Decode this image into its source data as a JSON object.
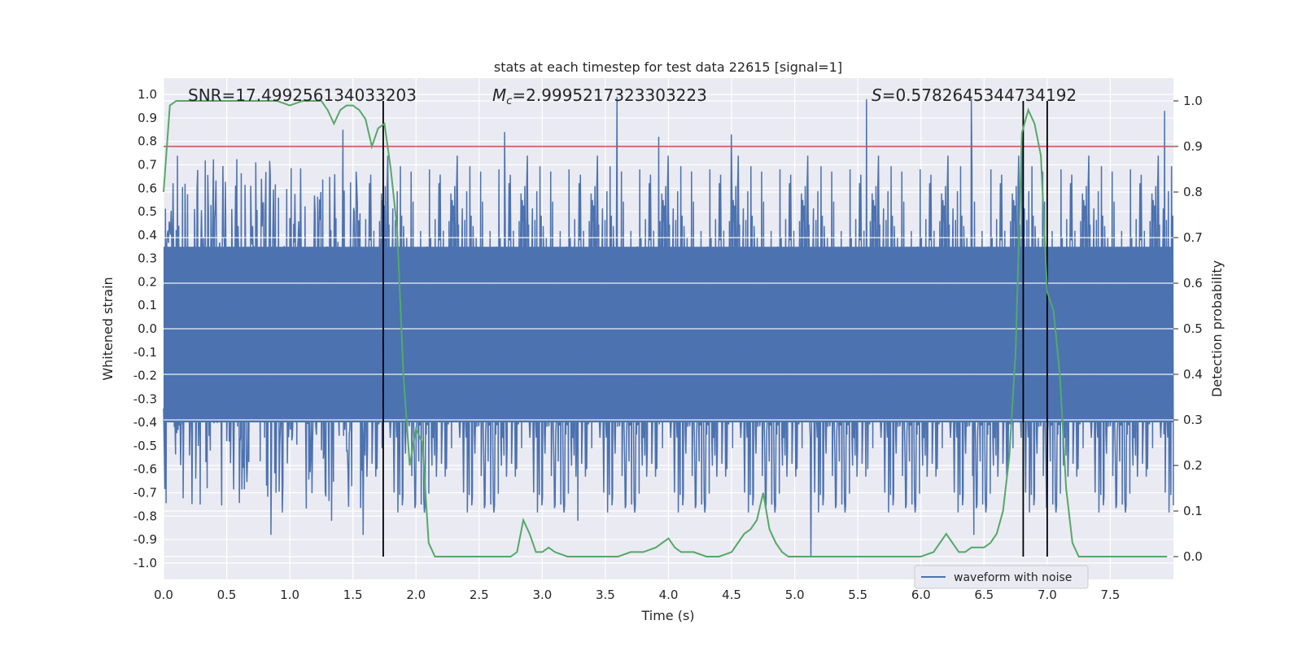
{
  "chart_data": {
    "type": "line",
    "title": "stats at each timestep for test data 22615 [signal=1]",
    "xlabel": "Time (s)",
    "ylabel_left": "Whitened strain",
    "ylabel_right": "Detection probability",
    "xlim": [
      0.0,
      8.0
    ],
    "ylim_left": [
      -1.07,
      1.07
    ],
    "ylim_right": [
      -0.05,
      1.05
    ],
    "grid": true,
    "x_ticks": [
      "0.0",
      "0.5",
      "1.0",
      "1.5",
      "2.0",
      "2.5",
      "3.0",
      "3.5",
      "4.0",
      "4.5",
      "5.0",
      "5.5",
      "6.0",
      "6.5",
      "7.0",
      "7.5"
    ],
    "x_tick_values": [
      0.0,
      0.5,
      1.0,
      1.5,
      2.0,
      2.5,
      3.0,
      3.5,
      4.0,
      4.5,
      5.0,
      5.5,
      6.0,
      6.5,
      7.0,
      7.5
    ],
    "y_left_ticks": [
      "1.0",
      "0.9",
      "0.8",
      "0.7",
      "0.6",
      "0.5",
      "0.4",
      "0.3",
      "0.2",
      "0.1",
      "0.0",
      "-0.1",
      "-0.2",
      "-0.3",
      "-0.4",
      "-0.5",
      "-0.6",
      "-0.7",
      "-0.8",
      "-0.9",
      "-1.0"
    ],
    "y_left_tick_values": [
      1.0,
      0.9,
      0.8,
      0.7,
      0.6,
      0.5,
      0.4,
      0.3,
      0.2,
      0.1,
      0.0,
      -0.1,
      -0.2,
      -0.3,
      -0.4,
      -0.5,
      -0.6,
      -0.7,
      -0.8,
      -0.9,
      -1.0
    ],
    "y_right_ticks": [
      "1.0",
      "0.9",
      "0.8",
      "0.7",
      "0.6",
      "0.5",
      "0.4",
      "0.3",
      "0.2",
      "0.1",
      "0.0"
    ],
    "y_right_tick_values": [
      1.0,
      0.9,
      0.8,
      0.7,
      0.6,
      0.5,
      0.4,
      0.3,
      0.2,
      0.1,
      0.0
    ],
    "annotations": {
      "snr": "SNR=17.499256134033203",
      "mc_symbol": "M",
      "mc_sub": "c",
      "mc_value": "=2.9995217323303223",
      "s_symbol": "S",
      "s_value": "=0.5782645344734192"
    },
    "legend": {
      "label": "waveform with noise",
      "position": "lower-right"
    },
    "threshold": {
      "value": 0.9,
      "axis": "right",
      "color": "#c44e52"
    },
    "vertical_lines": [
      1.74,
      6.81,
      7.0
    ],
    "waveform": {
      "name": "waveform with noise",
      "color": "#4c72b0",
      "x_start": 0.0,
      "x_end": 8.0,
      "n_samples": 1600,
      "typical_upper": 0.35,
      "typical_lower": -0.4,
      "peaks": [
        {
          "x": 0.85,
          "y": -0.88
        },
        {
          "x": 1.42,
          "y": 0.85
        },
        {
          "x": 2.7,
          "y": 0.84
        },
        {
          "x": 3.59,
          "y": 0.99
        },
        {
          "x": 3.92,
          "y": 0.82
        },
        {
          "x": 4.5,
          "y": 0.83
        },
        {
          "x": 5.13,
          "y": -0.97
        },
        {
          "x": 5.57,
          "y": 0.98
        },
        {
          "x": 6.4,
          "y": 0.98
        },
        {
          "x": 6.8,
          "y": 0.84
        },
        {
          "x": 7.93,
          "y": 0.93
        },
        {
          "x": 1.58,
          "y": -0.88
        },
        {
          "x": 3.28,
          "y": -0.82
        },
        {
          "x": 6.42,
          "y": -0.88
        },
        {
          "x": 1.33,
          "y": -0.82
        }
      ]
    },
    "detection_probability": {
      "name": "detection probability",
      "color": "#55a868",
      "x": [
        0.0,
        0.05,
        0.1,
        0.2,
        0.3,
        0.5,
        0.7,
        0.9,
        1.0,
        1.1,
        1.2,
        1.25,
        1.3,
        1.35,
        1.4,
        1.45,
        1.5,
        1.55,
        1.6,
        1.65,
        1.7,
        1.75,
        1.8,
        1.85,
        1.9,
        1.95,
        2.0,
        2.05,
        2.1,
        2.15,
        2.2,
        2.3,
        2.4,
        2.5,
        2.6,
        2.7,
        2.75,
        2.8,
        2.85,
        2.9,
        2.95,
        3.0,
        3.05,
        3.1,
        3.2,
        3.3,
        3.4,
        3.6,
        3.7,
        3.8,
        3.9,
        3.95,
        4.0,
        4.05,
        4.1,
        4.15,
        4.2,
        4.3,
        4.4,
        4.5,
        4.55,
        4.6,
        4.65,
        4.7,
        4.75,
        4.8,
        4.85,
        4.9,
        4.95,
        5.0,
        5.1,
        5.3,
        5.6,
        5.9,
        6.0,
        6.1,
        6.15,
        6.2,
        6.25,
        6.3,
        6.35,
        6.4,
        6.45,
        6.5,
        6.55,
        6.6,
        6.65,
        6.7,
        6.75,
        6.8,
        6.85,
        6.9,
        6.95,
        7.0,
        7.05,
        7.1,
        7.15,
        7.2,
        7.25,
        7.3,
        7.4,
        7.6,
        7.8,
        7.9,
        7.95
      ],
      "y": [
        0.8,
        0.99,
        1.0,
        1.0,
        1.0,
        1.0,
        1.0,
        1.0,
        0.99,
        1.0,
        1.0,
        1.0,
        0.98,
        0.95,
        0.98,
        0.99,
        0.99,
        0.98,
        0.96,
        0.9,
        0.94,
        0.95,
        0.85,
        0.72,
        0.4,
        0.2,
        0.28,
        0.25,
        0.03,
        0.0,
        0.0,
        0.0,
        0.0,
        0.0,
        0.0,
        0.0,
        0.0,
        0.01,
        0.08,
        0.05,
        0.01,
        0.01,
        0.02,
        0.01,
        0.0,
        0.0,
        0.0,
        0.0,
        0.01,
        0.01,
        0.02,
        0.03,
        0.04,
        0.02,
        0.01,
        0.01,
        0.01,
        0.0,
        0.0,
        0.01,
        0.03,
        0.05,
        0.06,
        0.08,
        0.14,
        0.06,
        0.03,
        0.01,
        0.0,
        0.0,
        0.0,
        0.0,
        0.0,
        0.0,
        0.0,
        0.01,
        0.03,
        0.05,
        0.03,
        0.01,
        0.01,
        0.02,
        0.02,
        0.02,
        0.03,
        0.05,
        0.1,
        0.22,
        0.45,
        0.93,
        0.98,
        0.95,
        0.88,
        0.58,
        0.54,
        0.4,
        0.15,
        0.03,
        0.0,
        0.0,
        0.0,
        0.0,
        0.0,
        0.0,
        0.0
      ]
    }
  }
}
